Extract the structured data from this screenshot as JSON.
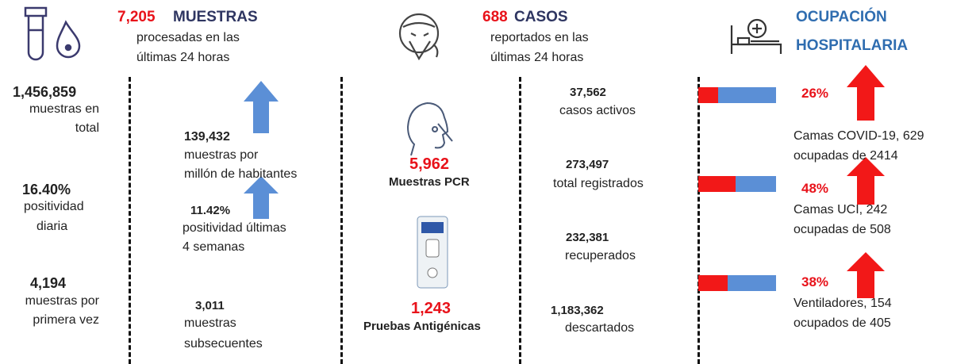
{
  "muestras": {
    "header": {
      "count": "7,205",
      "title": "MUESTRAS",
      "lines": [
        "procesadas en las",
        "últimas 24 horas"
      ]
    },
    "total": {
      "value": "1,456,859",
      "lines": [
        "muestras en",
        "total"
      ]
    },
    "positividad": {
      "value": "16.40%",
      "lines": [
        "positividad",
        "diaria"
      ]
    },
    "primera_vez": {
      "value": "4,194",
      "lines": [
        "muestras por",
        "primera vez"
      ]
    },
    "por_millon": {
      "value": "139,432",
      "lines": [
        "muestras por",
        "millón de habitantes"
      ]
    },
    "positividad_4s": {
      "value": "11.42%",
      "lines": [
        "positividad últimas",
        "4 semanas"
      ]
    },
    "subsecuentes": {
      "value": "3,011",
      "lines": [
        "muestras",
        "subsecuentes"
      ]
    },
    "pcr": {
      "value": "5,962",
      "label": "Muestras PCR"
    },
    "antigenicas": {
      "value": "1,243",
      "label": "Pruebas Antigénicas"
    }
  },
  "casos": {
    "header": {
      "count": "688",
      "title": "CASOS",
      "lines": [
        "reportados en las",
        "últimas 24 horas"
      ]
    },
    "activos": {
      "value": "37,562",
      "label": "casos activos"
    },
    "registrados": {
      "value": "273,497",
      "label": "total registrados"
    },
    "recuperados": {
      "value": "232,381",
      "label": "recuperados"
    },
    "descartados": {
      "value": "1,183,362",
      "label": "descartados"
    }
  },
  "ocupacion": {
    "title": [
      "OCUPACIÓN",
      "HOSPITALARIA"
    ],
    "items": [
      {
        "percent": 26,
        "percent_label": "26%",
        "lines": [
          "Camas COVID-19,  629",
          "ocupadas de 2414"
        ]
      },
      {
        "percent": 48,
        "percent_label": "48%",
        "lines": [
          "Camas UCI,  242",
          "ocupadas de 508"
        ]
      },
      {
        "percent": 38,
        "percent_label": "38%",
        "lines": [
          "Ventiladores, 154",
          "ocupados de 405"
        ]
      }
    ]
  }
}
